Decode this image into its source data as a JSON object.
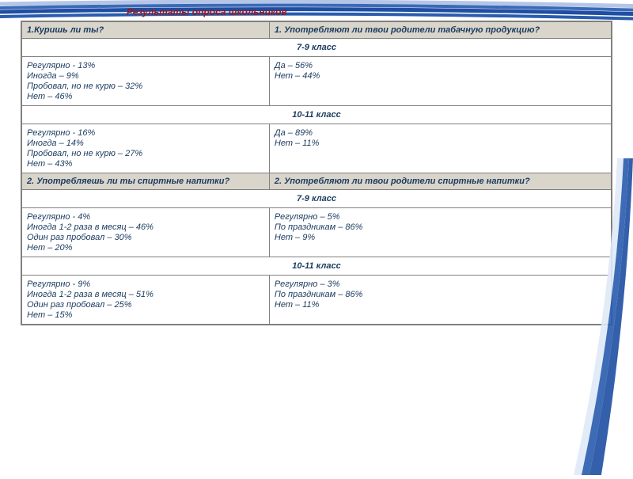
{
  "colors": {
    "titleColor": "#9b1717",
    "headerBg": "#d9d5cb",
    "textColor": "#1a3a5f",
    "borderColor": "#808080",
    "stripe1": "#1f4ea3",
    "stripe2": "#3a6ab7",
    "stripe3": "#2a5cad",
    "stripe4": "#b4c5e8"
  },
  "title": "Результаты опроса школьников",
  "sections": [
    {
      "qLeft": "1.Куришь ли ты?",
      "qRight": "1. Употребляют ли твои родители табачную продукцию?",
      "groups": [
        {
          "label": "7-9 класс",
          "left": [
            "Регулярно - 13%",
            "Иногда – 9%",
            "Пробовал, но не курю – 32%",
            "Нет – 46%"
          ],
          "right": [
            "Да – 56%",
            "Нет – 44%"
          ]
        },
        {
          "label": "10-11 класс",
          "left": [
            "Регулярно - 16%",
            "Иногда – 14%",
            "Пробовал, но не курю – 27%",
            "Нет – 43%"
          ],
          "right": [
            "Да – 89%",
            "Нет – 11%"
          ]
        }
      ]
    },
    {
      "qLeft": "2. Употребляешь ли ты спиртные напитки?",
      "qRight": "2. Употребляют ли твои родители спиртные напитки?",
      "groups": [
        {
          "label": "7-9 класс",
          "left": [
            "Регулярно - 4%",
            "Иногда 1-2 раза в месяц – 46%",
            "Один раз пробовал – 30%",
            "Нет – 20%"
          ],
          "right": [
            "Регулярно – 5%",
            "По праздникам – 86%",
            "Нет – 9%"
          ]
        },
        {
          "label": "10-11 класс",
          "left": [
            "Регулярно - 9%",
            "Иногда 1-2 раза в месяц – 51%",
            "Один раз пробовал – 25%",
            "Нет – 15%"
          ],
          "right": [
            "Регулярно – 3%",
            "По праздникам – 86%",
            "Нет – 11%"
          ]
        }
      ]
    }
  ]
}
